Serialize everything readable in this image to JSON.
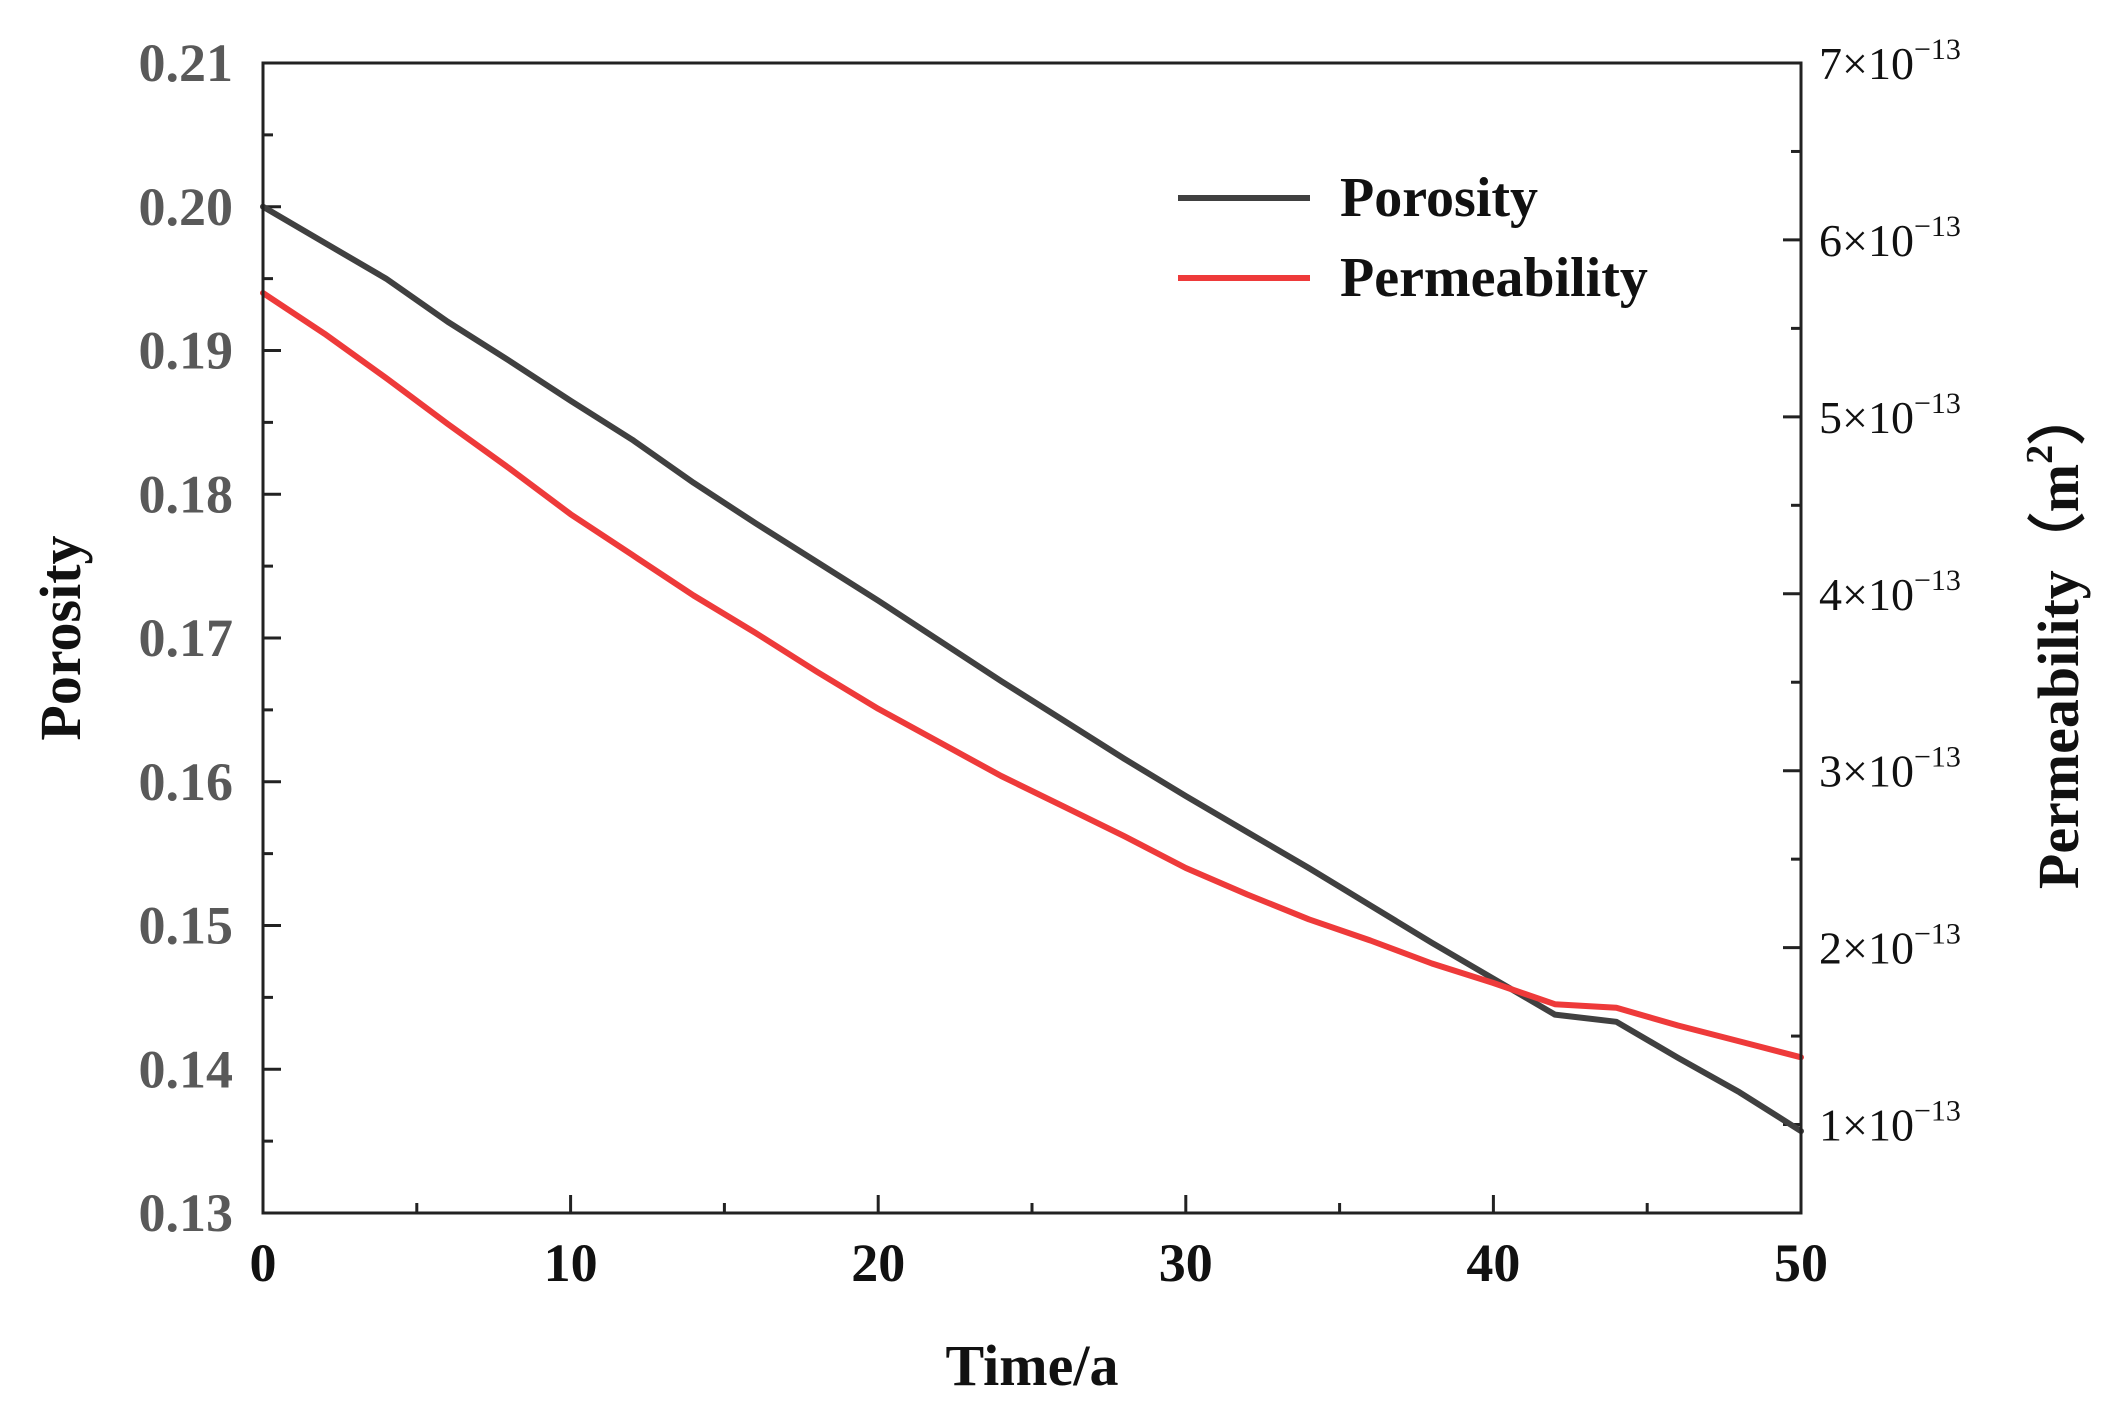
{
  "chart_data": {
    "type": "line",
    "xlabel": "Time/a",
    "ylabel_left": "Porosity",
    "ylabel_right": "Permeability（m",
    "ylabel_right_sup": "2",
    "ylabel_right_close": "）",
    "xlim": [
      0,
      50
    ],
    "ylim_left": [
      0.13,
      0.21
    ],
    "ylim_right": [
      5e-14,
      7e-13
    ],
    "x_ticks": [
      "0",
      "10",
      "20",
      "30",
      "40",
      "50"
    ],
    "y_left_ticks": [
      "0.13",
      "0.14",
      "0.15",
      "0.16",
      "0.17",
      "0.18",
      "0.19",
      "0.20",
      "0.21"
    ],
    "y_right_ticks": [
      {
        "mantissa": "1×10",
        "exponent": "−13"
      },
      {
        "mantissa": "2×10",
        "exponent": "−13"
      },
      {
        "mantissa": "3×10",
        "exponent": "−13"
      },
      {
        "mantissa": "4×10",
        "exponent": "−13"
      },
      {
        "mantissa": "5×10",
        "exponent": "−13"
      },
      {
        "mantissa": "6×10",
        "exponent": "−13"
      },
      {
        "mantissa": "7×10",
        "exponent": "−13"
      }
    ],
    "legend_position": "top-right",
    "series": [
      {
        "name": "Porosity",
        "axis": "left",
        "color": "#404040",
        "x": [
          0,
          2,
          4,
          6,
          8,
          10,
          12,
          14,
          16,
          18,
          20,
          22,
          24,
          26,
          28,
          30,
          32,
          34,
          36,
          38,
          40,
          42,
          44,
          46,
          48,
          50
        ],
        "y": [
          0.2,
          0.1975,
          0.195,
          0.192,
          0.1893,
          0.1865,
          0.1838,
          0.1808,
          0.178,
          0.1753,
          0.1726,
          0.1698,
          0.167,
          0.1643,
          0.1616,
          0.159,
          0.1565,
          0.154,
          0.1514,
          0.1488,
          0.1463,
          0.1438,
          0.1433,
          0.1408,
          0.1384,
          0.1357
        ]
      },
      {
        "name": "Permeability",
        "axis": "right",
        "color": "#ee3a3a",
        "x": [
          0,
          2,
          4,
          6,
          8,
          10,
          12,
          14,
          16,
          18,
          20,
          22,
          24,
          26,
          28,
          30,
          32,
          34,
          36,
          38,
          40,
          42,
          44,
          46,
          48,
          50
        ],
        "y": [
          5.7e-13,
          5.47e-13,
          5.22e-13,
          4.96e-13,
          4.71e-13,
          4.45e-13,
          4.22e-13,
          3.99e-13,
          3.78e-13,
          3.56e-13,
          3.35e-13,
          3.16e-13,
          2.97e-13,
          2.8e-13,
          2.63e-13,
          2.45e-13,
          2.3e-13,
          2.16e-13,
          2.04e-13,
          1.91e-13,
          1.8e-13,
          1.68e-13,
          1.66e-13,
          1.56e-13,
          1.47e-13,
          1.38e-13
        ]
      }
    ]
  }
}
